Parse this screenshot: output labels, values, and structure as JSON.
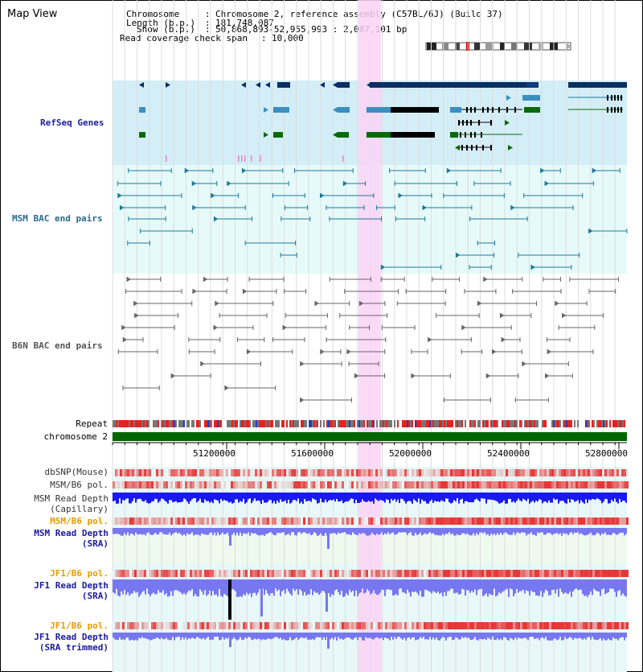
{
  "title": "Map View",
  "header": {
    "chromosome_label": "Chromosome",
    "chromosome_value": "Chromosome 2, reference assembly (C57BL/6J) (Build 37)",
    "length_label": "Length (b.p.)",
    "length_value": "181,748,087",
    "show_label": "Show (b.p.)",
    "show_value": "50,868,893-52,955,993 : 2,087,101 bp",
    "coverage_label": "Read coverage check span",
    "coverage_value": "10,000"
  },
  "tracks": {
    "refseq": "RefSeq Genes",
    "msm_bac": "MSM BAC end pairs",
    "b6n_bac": "B6N BAC end pairs",
    "repeat": "Repeat",
    "chromosome": "chromosome 2",
    "dbsnp": "dbSNP(Mouse)",
    "msm_b6_pol": "MSM/B6 pol.",
    "msm_read_depth_cap_1": "MSM Read Depth",
    "msm_read_depth_cap_2": "(Capillary)",
    "msm_b6_pol_2": "MSM/B6 pol.",
    "msm_read_depth_sra_1": "MSM Read Depth",
    "msm_read_depth_sra_2": "(SRA)",
    "jf1_b6_pol": "JF1/B6 pol.",
    "jf1_read_depth_sra_1": "JF1 Read Depth",
    "jf1_read_depth_sra_2": "(SRA)",
    "jf1_b6_pol_2": "JF1/B6 pol.",
    "jf1_read_depth_trim_1": "JF1 Read Depth",
    "jf1_read_depth_trim_2": "(SRA trimmed)"
  },
  "axis_ticks": [
    "51200000",
    "51600000",
    "52000000",
    "52400000",
    "52800000"
  ],
  "colors": {
    "refseq_bg": "#d4eef8",
    "bac_bg": "#e6fafa",
    "highlight": "#f9d4f4",
    "gene_dark": "#0a2f63",
    "gene_mid": "#3a8fc0",
    "gene_green": "#0a6a0a",
    "msm_bac_line": "#1a7a9a",
    "chromosome_bar": "#006600",
    "snp_red": "#e83a3a",
    "depth_blue": "#1a1af0",
    "depth_light": "#7777f0",
    "label_blue": "#1a1aa0",
    "label_orange": "#e89a00",
    "label_teal": "#2a6a8a"
  }
}
